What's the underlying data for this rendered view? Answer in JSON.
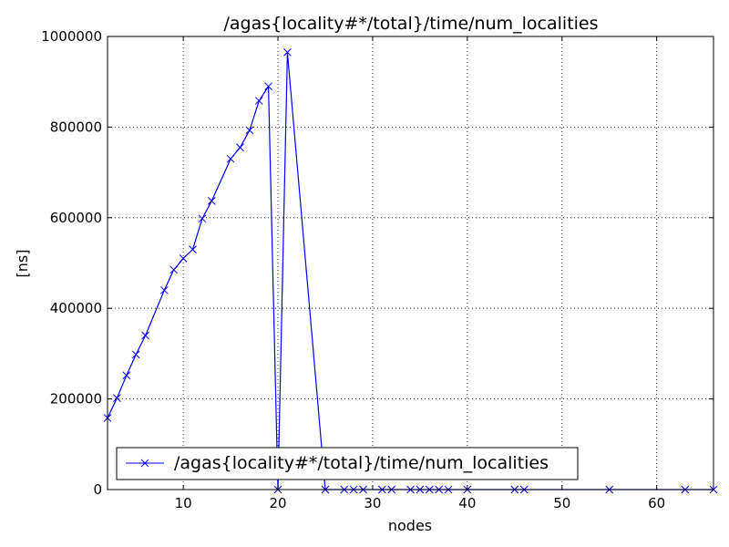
{
  "chart_data": {
    "type": "line",
    "title": "/agas{locality#*/total}/time/num_localities",
    "xlabel": "nodes",
    "ylabel": "[ns]",
    "xlim": [
      2,
      66
    ],
    "ylim": [
      0,
      1000000
    ],
    "x_ticks": [
      10,
      20,
      30,
      40,
      50,
      60
    ],
    "y_ticks": [
      0,
      200000,
      400000,
      600000,
      800000,
      1000000
    ],
    "grid": true,
    "legend_position": "lower-left",
    "series": [
      {
        "name": "/agas{locality#*/total}/time/num_localities",
        "color": "#0000ff",
        "marker": "x",
        "x": [
          2,
          3,
          4,
          5,
          6,
          8,
          9,
          10,
          11,
          12,
          13,
          15,
          16,
          17,
          18,
          19,
          20,
          21,
          25,
          27,
          28,
          29,
          31,
          32,
          34,
          35,
          36,
          37,
          38,
          40,
          45,
          46,
          55,
          63,
          66
        ],
        "y": [
          158000,
          202000,
          252000,
          298000,
          340000,
          440000,
          485000,
          510000,
          530000,
          598000,
          637000,
          730000,
          755000,
          793000,
          858000,
          890000,
          0,
          965000,
          0,
          0,
          0,
          0,
          0,
          0,
          0,
          0,
          0,
          0,
          0,
          0,
          0,
          0,
          0,
          0,
          0
        ]
      }
    ]
  }
}
